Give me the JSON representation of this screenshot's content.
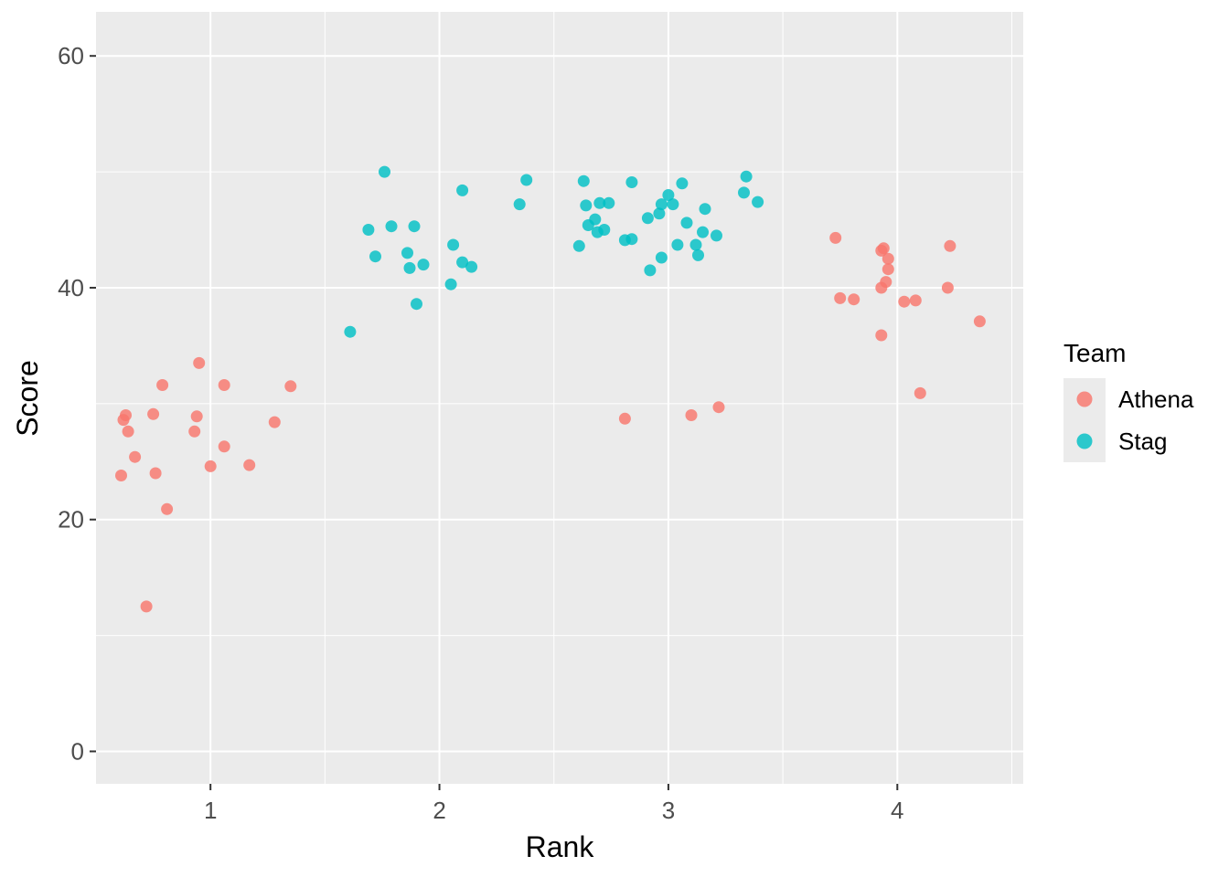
{
  "chart_data": {
    "type": "scatter",
    "title": "",
    "xlabel": "Rank",
    "ylabel": "Score",
    "xlim": [
      0.5,
      4.55
    ],
    "ylim": [
      -2.8,
      63.8
    ],
    "x_ticks": [
      1,
      2,
      3,
      4
    ],
    "x_tick_labels": [
      "1",
      "2",
      "3",
      "4"
    ],
    "y_ticks": [
      0,
      20,
      40,
      60
    ],
    "y_tick_labels": [
      "0",
      "20",
      "40",
      "60"
    ],
    "grid": true,
    "legend": {
      "title": "Team",
      "position": "right",
      "entries": [
        "Athena",
        "Stag"
      ]
    },
    "colors": {
      "panel_bg": "#ebebeb",
      "grid": "#ffffff",
      "Athena": "#f8766d",
      "Stag": "#00bfc4"
    },
    "series": [
      {
        "name": "Athena",
        "points": [
          [
            0.61,
            23.8
          ],
          [
            0.62,
            28.6
          ],
          [
            0.63,
            29.0
          ],
          [
            0.64,
            27.6
          ],
          [
            0.67,
            25.4
          ],
          [
            0.72,
            12.5
          ],
          [
            0.75,
            29.1
          ],
          [
            0.76,
            24.0
          ],
          [
            0.79,
            31.6
          ],
          [
            0.81,
            20.9
          ],
          [
            0.93,
            27.6
          ],
          [
            0.94,
            28.9
          ],
          [
            0.95,
            33.5
          ],
          [
            1.0,
            24.6
          ],
          [
            1.06,
            31.6
          ],
          [
            1.06,
            26.3
          ],
          [
            1.17,
            24.7
          ],
          [
            1.28,
            28.4
          ],
          [
            1.35,
            31.5
          ],
          [
            2.81,
            28.7
          ],
          [
            3.1,
            29.0
          ],
          [
            3.22,
            29.7
          ],
          [
            3.73,
            44.3
          ],
          [
            3.75,
            39.1
          ],
          [
            3.81,
            39.0
          ],
          [
            3.93,
            43.2
          ],
          [
            3.94,
            43.4
          ],
          [
            3.93,
            40.0
          ],
          [
            3.95,
            40.5
          ],
          [
            3.96,
            42.5
          ],
          [
            3.96,
            41.6
          ],
          [
            3.93,
            35.9
          ],
          [
            4.03,
            38.8
          ],
          [
            4.08,
            38.9
          ],
          [
            4.1,
            30.9
          ],
          [
            4.22,
            40.0
          ],
          [
            4.23,
            43.6
          ],
          [
            4.36,
            37.1
          ]
        ]
      },
      {
        "name": "Stag",
        "points": [
          [
            1.61,
            36.2
          ],
          [
            1.69,
            45.0
          ],
          [
            1.72,
            42.7
          ],
          [
            1.76,
            50.0
          ],
          [
            1.79,
            45.3
          ],
          [
            1.86,
            43.0
          ],
          [
            1.87,
            41.7
          ],
          [
            1.89,
            45.3
          ],
          [
            1.9,
            38.6
          ],
          [
            1.93,
            42.0
          ],
          [
            2.05,
            40.3
          ],
          [
            2.06,
            43.7
          ],
          [
            2.1,
            42.2
          ],
          [
            2.1,
            48.4
          ],
          [
            2.14,
            41.8
          ],
          [
            2.35,
            47.2
          ],
          [
            2.38,
            49.3
          ],
          [
            2.61,
            43.6
          ],
          [
            2.63,
            49.2
          ],
          [
            2.64,
            47.1
          ],
          [
            2.65,
            45.4
          ],
          [
            2.68,
            45.9
          ],
          [
            2.69,
            44.8
          ],
          [
            2.7,
            47.3
          ],
          [
            2.72,
            45.0
          ],
          [
            2.74,
            47.3
          ],
          [
            2.81,
            44.1
          ],
          [
            2.84,
            49.1
          ],
          [
            2.84,
            44.2
          ],
          [
            2.91,
            46.0
          ],
          [
            2.92,
            41.5
          ],
          [
            2.96,
            46.4
          ],
          [
            2.97,
            47.2
          ],
          [
            2.97,
            42.6
          ],
          [
            3.0,
            48.0
          ],
          [
            3.02,
            47.2
          ],
          [
            3.04,
            43.7
          ],
          [
            3.06,
            49.0
          ],
          [
            3.08,
            45.6
          ],
          [
            3.12,
            43.7
          ],
          [
            3.13,
            42.8
          ],
          [
            3.15,
            44.8
          ],
          [
            3.16,
            46.8
          ],
          [
            3.21,
            44.5
          ],
          [
            3.33,
            48.2
          ],
          [
            3.34,
            49.6
          ],
          [
            3.39,
            47.4
          ]
        ]
      }
    ]
  }
}
